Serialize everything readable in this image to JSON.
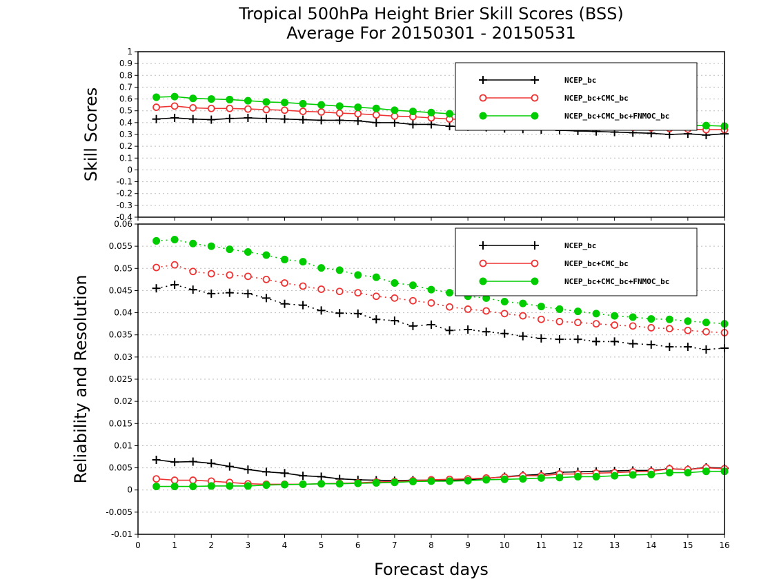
{
  "title_line1": "Tropical 500hPa Height Brier Skill Scores (BSS)",
  "title_line2": "Average For 20150301 - 20150531",
  "xlabel": "Forecast days",
  "legend_labels": [
    "NCEP_bc",
    "NCEP_bc+CMC_bc",
    "NCEP_bc+CMC_bc+FNMOC_bc"
  ],
  "colors": {
    "NCEP_bc": "#000000",
    "NCEP_bc+CMC_bc": "#ee3333",
    "NCEP_bc+CMC_bc+FNMOC_bc": "#00cc00"
  },
  "chart_data": [
    {
      "type": "line",
      "ylabel": "Skill Scores",
      "xlim": [
        0,
        16
      ],
      "ylim": [
        -0.4,
        1
      ],
      "x_ticks": [
        0,
        1,
        2,
        3,
        4,
        5,
        6,
        7,
        8,
        9,
        10,
        11,
        12,
        13,
        14,
        15,
        16
      ],
      "y_ticks": [
        -0.4,
        -0.3,
        -0.2,
        -0.1,
        0,
        0.1,
        0.2,
        0.3,
        0.4,
        0.5,
        0.6,
        0.7,
        0.8,
        0.9,
        1
      ],
      "y_tick_labels": [
        "-0.4",
        "-0.3",
        "-0.2",
        "-0.1",
        "0",
        "0.1",
        "0.2",
        "0.3",
        "0.4",
        "0.5",
        "0.6",
        "0.7",
        "0.8",
        "0.9",
        "1"
      ],
      "grid": true,
      "legend_position": "top-right",
      "x": [
        0.5,
        1,
        1.5,
        2,
        2.5,
        3,
        3.5,
        4,
        4.5,
        5,
        5.5,
        6,
        6.5,
        7,
        7.5,
        8,
        8.5,
        9,
        9.5,
        10,
        10.5,
        11,
        11.5,
        12,
        12.5,
        13,
        13.5,
        14,
        14.5,
        15,
        15.5,
        16
      ],
      "series": [
        {
          "name": "NCEP_bc",
          "style": "solid",
          "marker": "plus",
          "values": [
            0.43,
            0.44,
            0.43,
            0.425,
            0.435,
            0.44,
            0.435,
            0.43,
            0.425,
            0.42,
            0.42,
            0.415,
            0.4,
            0.4,
            0.385,
            0.385,
            0.37,
            0.365,
            0.36,
            0.35,
            0.345,
            0.34,
            0.335,
            0.33,
            0.325,
            0.32,
            0.315,
            0.31,
            0.3,
            0.305,
            0.295,
            0.305
          ]
        },
        {
          "name": "NCEP_bc+CMC_bc",
          "style": "solid",
          "marker": "open-circle",
          "values": [
            0.53,
            0.54,
            0.525,
            0.52,
            0.52,
            0.515,
            0.51,
            0.505,
            0.495,
            0.49,
            0.48,
            0.475,
            0.465,
            0.455,
            0.45,
            0.44,
            0.43,
            0.425,
            0.415,
            0.41,
            0.4,
            0.395,
            0.39,
            0.38,
            0.375,
            0.37,
            0.36,
            0.355,
            0.35,
            0.345,
            0.34,
            0.34
          ]
        },
        {
          "name": "NCEP_bc+CMC_bc+FNMOC_bc",
          "style": "solid",
          "marker": "filled-circle",
          "values": [
            0.615,
            0.62,
            0.605,
            0.6,
            0.595,
            0.585,
            0.575,
            0.57,
            0.56,
            0.55,
            0.54,
            0.53,
            0.52,
            0.505,
            0.495,
            0.485,
            0.475,
            0.46,
            0.45,
            0.44,
            0.43,
            0.425,
            0.415,
            0.405,
            0.4,
            0.395,
            0.39,
            0.385,
            0.38,
            0.375,
            0.375,
            0.37
          ]
        }
      ]
    },
    {
      "type": "line",
      "ylabel": "Reliability and Resolution",
      "xlim": [
        0,
        16
      ],
      "ylim": [
        -0.01,
        0.06
      ],
      "x_ticks": [
        0,
        1,
        2,
        3,
        4,
        5,
        6,
        7,
        8,
        9,
        10,
        11,
        12,
        13,
        14,
        15,
        16
      ],
      "y_ticks": [
        -0.01,
        -0.005,
        0,
        0.005,
        0.01,
        0.015,
        0.02,
        0.025,
        0.03,
        0.035,
        0.04,
        0.045,
        0.05,
        0.055,
        0.06
      ],
      "y_tick_labels": [
        "-0.01",
        "-0.005",
        "0",
        "0.005",
        "0.01",
        "0.015",
        "0.02",
        "0.025",
        "0.03",
        "0.035",
        "0.04",
        "0.045",
        "0.05",
        "0.055",
        "0.06"
      ],
      "grid": true,
      "legend_position": "top-right",
      "x": [
        0.5,
        1,
        1.5,
        2,
        2.5,
        3,
        3.5,
        4,
        4.5,
        5,
        5.5,
        6,
        6.5,
        7,
        7.5,
        8,
        8.5,
        9,
        9.5,
        10,
        10.5,
        11,
        11.5,
        12,
        12.5,
        13,
        13.5,
        14,
        14.5,
        15,
        15.5,
        16
      ],
      "series": [
        {
          "name": "NCEP_bc",
          "part": "resolution",
          "style": "dotted",
          "marker": "plus",
          "values": [
            0.0455,
            0.0463,
            0.0452,
            0.0443,
            0.0445,
            0.0443,
            0.0433,
            0.042,
            0.0417,
            0.0405,
            0.0399,
            0.0398,
            0.0385,
            0.0382,
            0.037,
            0.0373,
            0.036,
            0.0362,
            0.0357,
            0.0353,
            0.0347,
            0.0342,
            0.034,
            0.034,
            0.0335,
            0.0335,
            0.033,
            0.0328,
            0.0323,
            0.0323,
            0.0317,
            0.032
          ]
        },
        {
          "name": "NCEP_bc+CMC_bc",
          "part": "resolution",
          "style": "dotted",
          "marker": "open-circle",
          "values": [
            0.0502,
            0.0508,
            0.0493,
            0.0488,
            0.0485,
            0.0482,
            0.0475,
            0.0467,
            0.046,
            0.0453,
            0.0448,
            0.0445,
            0.0437,
            0.0433,
            0.0427,
            0.0422,
            0.0413,
            0.0408,
            0.0404,
            0.0398,
            0.0393,
            0.0385,
            0.038,
            0.0378,
            0.0375,
            0.0372,
            0.037,
            0.0366,
            0.0364,
            0.036,
            0.0357,
            0.0355
          ]
        },
        {
          "name": "NCEP_bc+CMC_bc+FNMOC_bc",
          "part": "resolution",
          "style": "dotted",
          "marker": "filled-circle",
          "values": [
            0.0562,
            0.0565,
            0.0556,
            0.055,
            0.0543,
            0.0537,
            0.053,
            0.052,
            0.0515,
            0.0501,
            0.0496,
            0.0485,
            0.048,
            0.0467,
            0.0462,
            0.0452,
            0.0445,
            0.0437,
            0.0433,
            0.0425,
            0.0421,
            0.0414,
            0.0408,
            0.0403,
            0.0398,
            0.0393,
            0.039,
            0.0386,
            0.0385,
            0.0381,
            0.0378,
            0.0375
          ]
        },
        {
          "name": "NCEP_bc",
          "part": "reliability",
          "style": "solid",
          "marker": "plus",
          "values": [
            0.0068,
            0.0063,
            0.0064,
            0.006,
            0.0053,
            0.0046,
            0.0041,
            0.0038,
            0.0032,
            0.003,
            0.0025,
            0.0023,
            0.0022,
            0.0021,
            0.0022,
            0.0022,
            0.0022,
            0.0023,
            0.0026,
            0.003,
            0.0033,
            0.0035,
            0.004,
            0.0041,
            0.0042,
            0.0043,
            0.0044,
            0.0044,
            0.0048,
            0.0046,
            0.0051,
            0.0049
          ]
        },
        {
          "name": "NCEP_bc+CMC_bc",
          "part": "reliability",
          "style": "solid",
          "marker": "open-circle",
          "values": [
            0.0025,
            0.0022,
            0.0022,
            0.002,
            0.0017,
            0.0014,
            0.0013,
            0.0013,
            0.0013,
            0.0014,
            0.0015,
            0.0016,
            0.0018,
            0.0019,
            0.0021,
            0.0023,
            0.0024,
            0.0025,
            0.0027,
            0.0029,
            0.0032,
            0.0032,
            0.0036,
            0.0036,
            0.0038,
            0.0039,
            0.0041,
            0.0042,
            0.0048,
            0.0046,
            0.005,
            0.0048
          ]
        },
        {
          "name": "NCEP_bc+CMC_bc+FNMOC_bc",
          "part": "reliability",
          "style": "solid",
          "marker": "filled-circle",
          "values": [
            0.0008,
            0.0008,
            0.0008,
            0.0009,
            0.0009,
            0.0009,
            0.0011,
            0.0012,
            0.0013,
            0.0014,
            0.0014,
            0.0015,
            0.0016,
            0.0017,
            0.0019,
            0.002,
            0.002,
            0.0021,
            0.0023,
            0.0024,
            0.0025,
            0.0027,
            0.0028,
            0.003,
            0.003,
            0.0032,
            0.0034,
            0.0035,
            0.0039,
            0.0039,
            0.0042,
            0.0042
          ]
        }
      ]
    }
  ]
}
